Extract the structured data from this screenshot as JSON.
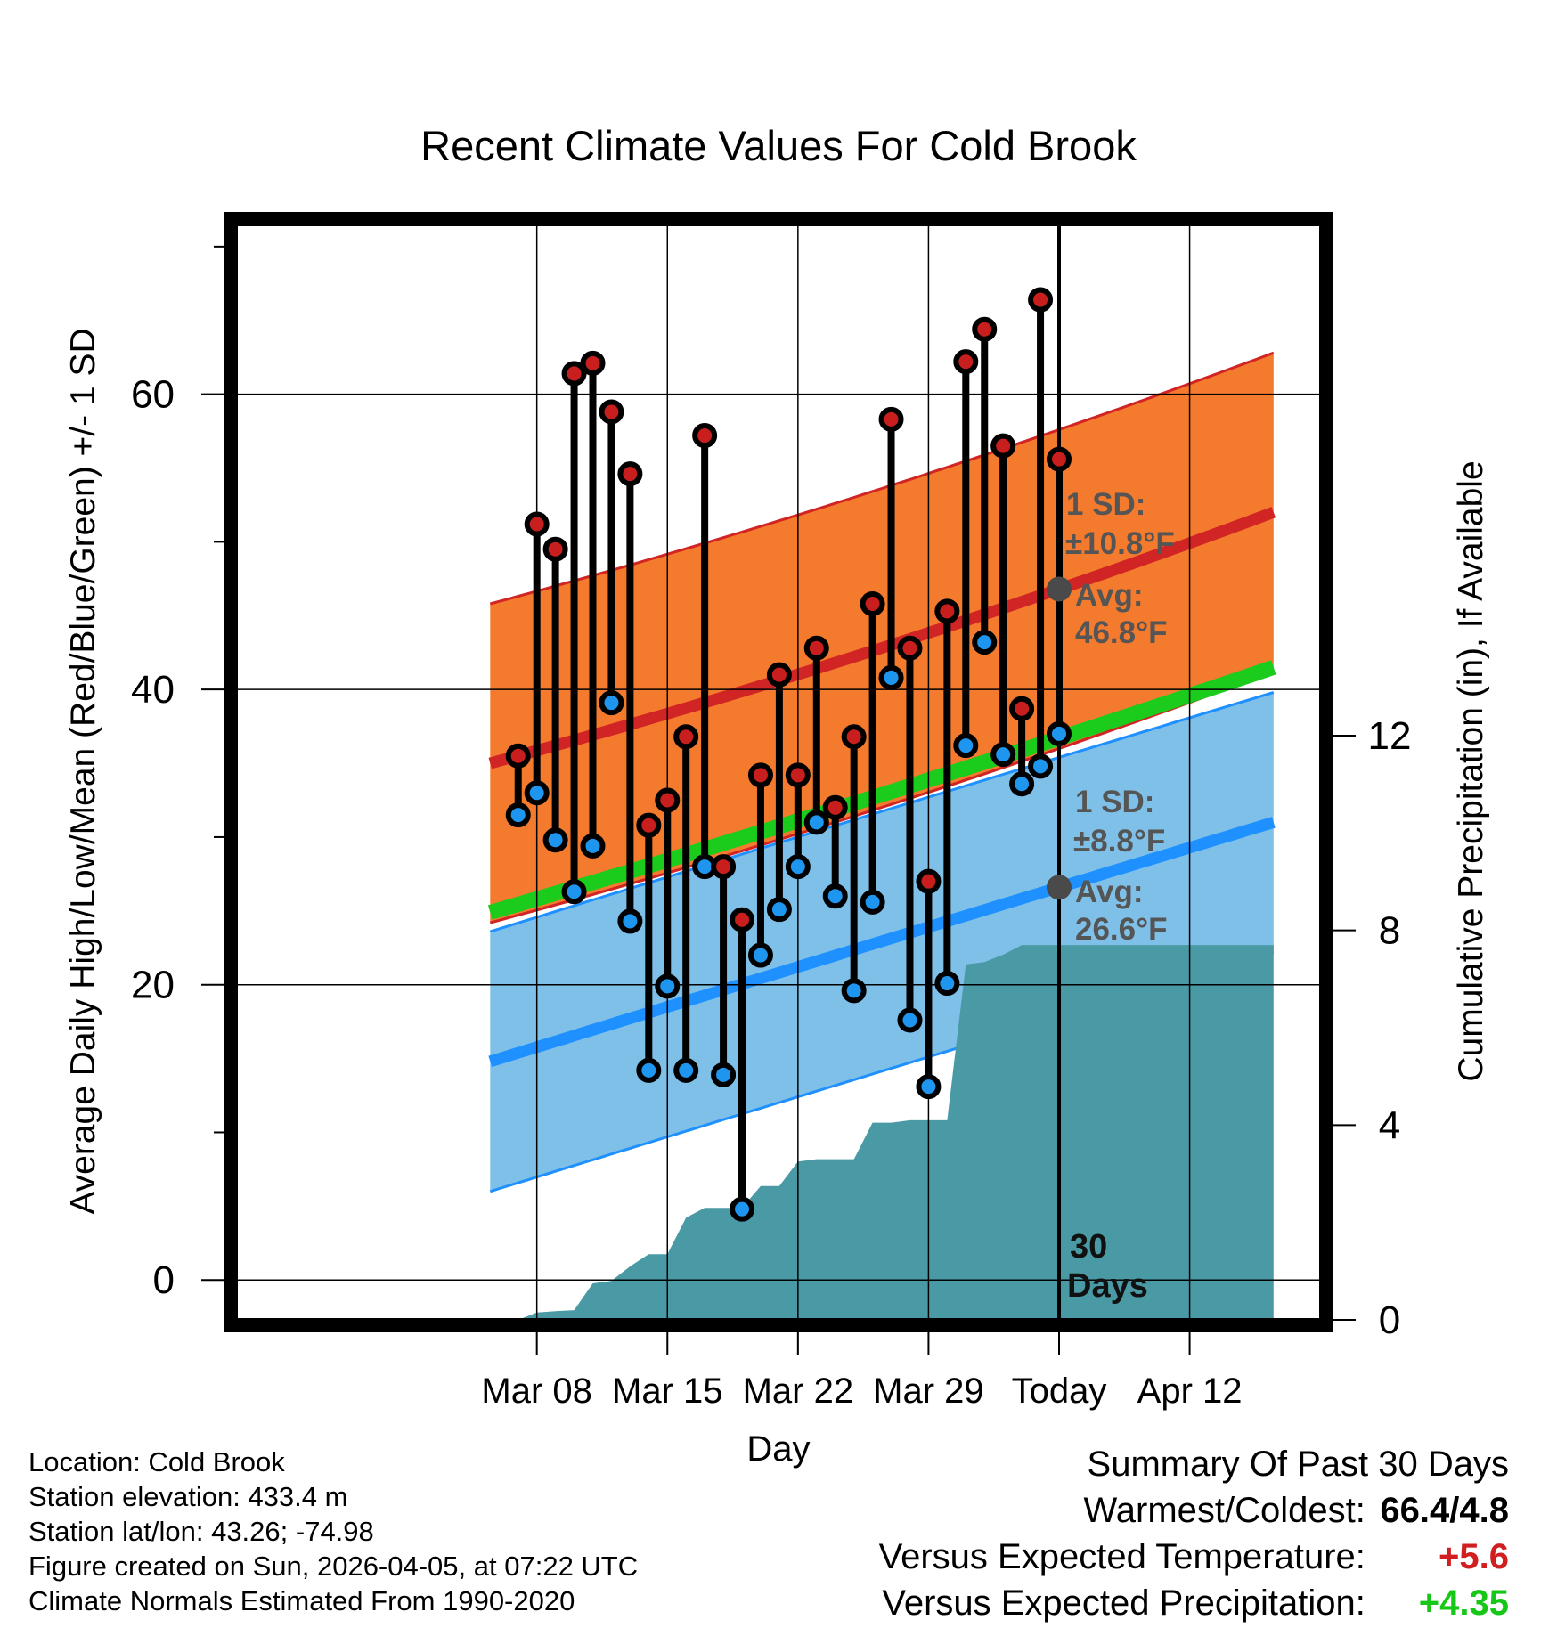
{
  "chart_data": {
    "type": "climate-range",
    "title": "Recent Climate Values For Cold Brook",
    "xlabel": "Day",
    "ylabel_left": "Average Daily High/Low/Mean (Red/Blue/Green) +/- 1 SD",
    "ylabel_right": "Cumulative Precipitation (in), If Available",
    "x_start_offset": -29,
    "x_range_days": [
      -30.5,
      11.5
    ],
    "ylim_left": [
      -2.7,
      71.5
    ],
    "ylim_right": [
      0,
      22.5
    ],
    "left_ticks": [
      0,
      20,
      40,
      60
    ],
    "left_minor_ticks": [
      10,
      30,
      50,
      70
    ],
    "right_ticks": [
      0,
      4,
      8,
      12
    ],
    "x_ticks": [
      {
        "day": -28,
        "label": "Mar 08"
      },
      {
        "day": -21,
        "label": "Mar 15"
      },
      {
        "day": -14,
        "label": "Mar 22"
      },
      {
        "day": -7,
        "label": "Mar 29"
      },
      {
        "day": 0,
        "label": "Today"
      },
      {
        "day": 7,
        "label": "Apr 12"
      }
    ],
    "highs": [
      35.5,
      51.2,
      49.5,
      61.4,
      62.1,
      58.8,
      54.6,
      30.8,
      32.5,
      36.8,
      57.2,
      28.0,
      24.4,
      34.2,
      41.0,
      34.2,
      42.8,
      32.0,
      36.8,
      45.8,
      58.3,
      42.8,
      27.0,
      45.3,
      62.2,
      64.4,
      56.5,
      38.7,
      66.4,
      55.6
    ],
    "lows": [
      31.5,
      33.0,
      29.8,
      26.3,
      29.4,
      39.1,
      24.3,
      14.2,
      19.9,
      14.2,
      28.0,
      13.9,
      4.8,
      22.0,
      25.1,
      28.0,
      31.0,
      26.0,
      19.6,
      25.6,
      40.8,
      17.6,
      13.1,
      20.1,
      36.2,
      43.2,
      35.6,
      33.6,
      34.8,
      37.0
    ],
    "precip_cumulative": [
      0.0,
      0.0,
      0.15,
      0.18,
      0.2,
      0.75,
      0.8,
      1.1,
      1.35,
      1.35,
      2.1,
      2.3,
      2.3,
      2.3,
      2.75,
      2.75,
      3.25,
      3.3,
      3.3,
      3.3,
      4.05,
      4.05,
      4.1,
      4.1,
      4.1,
      7.3,
      7.35,
      7.5,
      7.7,
      7.7,
      7.7
    ],
    "normal_high": {
      "start": 35.0,
      "today": 46.8,
      "end": 52.0,
      "sd": 10.8
    },
    "normal_low": {
      "start": 14.8,
      "today": 26.6,
      "end": 31.0,
      "sd": 8.8
    },
    "normal_mean": {
      "start": 24.9,
      "today": 36.7,
      "end": 41.5
    },
    "annotations": {
      "high_sd": "1 SD:",
      "high_sd_val": "±10.8°F",
      "high_avg": "Avg:",
      "high_avg_val": "46.8°F",
      "low_sd": "1 SD:",
      "low_sd_val": "±8.8°F",
      "low_avg": "Avg:",
      "low_avg_val": "26.6°F",
      "days_num": "30",
      "days_word": "Days"
    },
    "colors": {
      "high_band": "#f47a2d",
      "high_line": "#d12424",
      "high_point": "#c81e1e",
      "low_band": "#7fc0e8",
      "low_line": "#1e90ff",
      "low_point": "#1e96f0",
      "mean_line": "#1ccc1c",
      "overlap": "#a21717",
      "precip": "#4a9aa6",
      "annotation": "#555555"
    }
  },
  "footer": {
    "location": "Location: Cold Brook",
    "elevation": "Station elevation: 433.4 m",
    "latlon": "Station lat/lon: 43.26; -74.98",
    "created": "Figure created on Sun, 2026-04-05, at 07:22 UTC",
    "normals": "Climate Normals Estimated From 1990-2020"
  },
  "summary": {
    "title": "Summary Of Past 30 Days",
    "warm_cold_label": "Warmest/Coldest:",
    "warm_cold_value": "66.4/4.8",
    "temp_label": "Versus Expected Temperature:",
    "temp_value": "+5.6",
    "precip_label": "Versus Expected Precipitation:",
    "precip_value": "+4.35"
  }
}
